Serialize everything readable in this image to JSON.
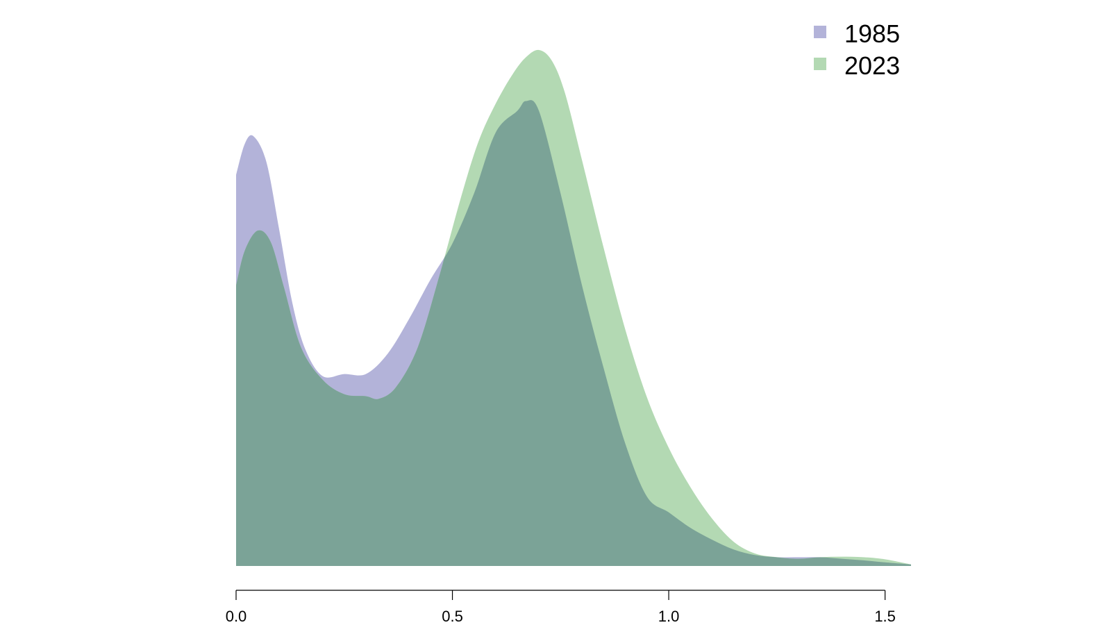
{
  "chart_data": {
    "type": "area",
    "title": "",
    "xlabel": "",
    "ylabel": "",
    "xlim": [
      0.0,
      1.56
    ],
    "ylim": [
      0,
      1.0
    ],
    "x_ticks": [
      0.0,
      0.5,
      1.0,
      1.5
    ],
    "x_tick_labels": [
      "0.0",
      "0.5",
      "1.0",
      "1.5"
    ],
    "y_axis_shown": false,
    "grid": false,
    "legend_position": "top-right",
    "overlap_color": "#7BA397",
    "series": [
      {
        "name": "1985",
        "color": "#B3B3D9",
        "x": [
          0.0,
          0.02,
          0.04,
          0.07,
          0.1,
          0.13,
          0.16,
          0.2,
          0.25,
          0.3,
          0.35,
          0.4,
          0.45,
          0.5,
          0.55,
          0.6,
          0.65,
          0.67,
          0.7,
          0.75,
          0.8,
          0.85,
          0.9,
          0.95,
          1.0,
          1.05,
          1.1,
          1.15,
          1.2,
          1.25,
          1.3,
          1.35,
          1.4,
          1.45,
          1.5,
          1.56
        ],
        "values": [
          0.758,
          0.818,
          0.833,
          0.783,
          0.65,
          0.51,
          0.42,
          0.368,
          0.372,
          0.372,
          0.411,
          0.479,
          0.556,
          0.625,
          0.722,
          0.84,
          0.882,
          0.901,
          0.882,
          0.722,
          0.542,
          0.382,
          0.236,
          0.134,
          0.104,
          0.074,
          0.051,
          0.032,
          0.021,
          0.017,
          0.017,
          0.017,
          0.014,
          0.011,
          0.007,
          0.003
        ]
      },
      {
        "name": "2023",
        "color": "#B3D9B3",
        "x": [
          0.0,
          0.02,
          0.05,
          0.08,
          0.11,
          0.15,
          0.2,
          0.25,
          0.3,
          0.33,
          0.37,
          0.42,
          0.47,
          0.52,
          0.56,
          0.6,
          0.64,
          0.67,
          0.7,
          0.73,
          0.76,
          0.8,
          0.85,
          0.9,
          0.95,
          1.0,
          1.05,
          1.1,
          1.15,
          1.2,
          1.25,
          1.3,
          1.35,
          1.4,
          1.45,
          1.5,
          1.56
        ],
        "values": [
          0.544,
          0.611,
          0.65,
          0.628,
          0.542,
          0.424,
          0.361,
          0.333,
          0.329,
          0.324,
          0.347,
          0.424,
          0.563,
          0.715,
          0.822,
          0.896,
          0.954,
          0.986,
          1.0,
          0.979,
          0.917,
          0.785,
          0.615,
          0.457,
          0.326,
          0.229,
          0.153,
          0.092,
          0.047,
          0.024,
          0.017,
          0.014,
          0.017,
          0.018,
          0.017,
          0.013,
          0.003
        ]
      }
    ]
  }
}
